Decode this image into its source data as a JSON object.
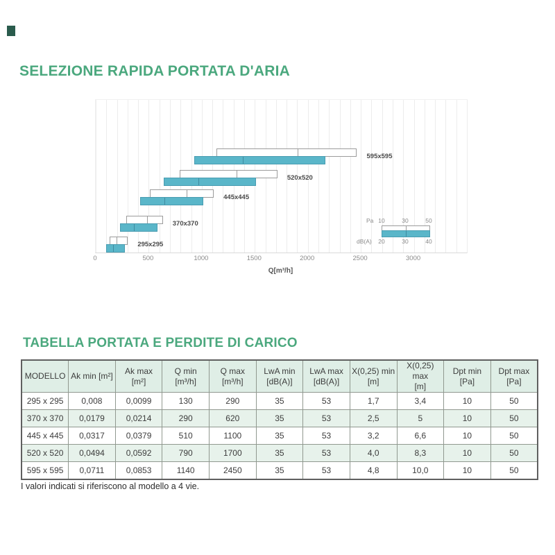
{
  "colors": {
    "accent_green": "#4ba87e",
    "bar_teal": "#5ab6c9",
    "bar_outline": "#9b9b9b",
    "table_header_bg": "#dfeee6",
    "table_stripe": "#e7f2eb",
    "corner_mark": "#2a5b4c"
  },
  "sections": {
    "selezione": {
      "title": "SELEZIONE RAPIDA PORTATA D'ARIA"
    },
    "tabella": {
      "title": "TABELLA PORTATA E PERDITE DI CARICO",
      "footnote": "I valori indicati si riferiscono al modello a 4 vie."
    }
  },
  "chart_data": {
    "type": "bar",
    "orientation": "horizontal-range",
    "title": "",
    "xlabel": "Q[m³/h]",
    "ylabel": "",
    "xlim": [
      0,
      3500
    ],
    "xticks": [
      "0",
      "500",
      "1000",
      "1500",
      "2000",
      "2500",
      "3000"
    ],
    "grid_step": 100,
    "legend": {
      "pa_label": "Pa",
      "pa_ticks": [
        "10",
        "30",
        "50"
      ],
      "dba_label": "dB(A)",
      "dba_ticks": [
        "20",
        "30",
        "40"
      ]
    },
    "models": [
      {
        "label": "295x295",
        "pa_range": [
          130,
          190,
          290
        ],
        "dba_range": [
          100,
          160,
          265
        ]
      },
      {
        "label": "370x370",
        "pa_range": [
          290,
          480,
          620
        ],
        "dba_range": [
          230,
          355,
          570
        ]
      },
      {
        "label": "445x445",
        "pa_range": [
          510,
          850,
          1100
        ],
        "dba_range": [
          420,
          640,
          1000
        ]
      },
      {
        "label": "520x520",
        "pa_range": [
          790,
          1320,
          1700
        ],
        "dba_range": [
          640,
          960,
          1500
        ]
      },
      {
        "label": "595x595",
        "pa_range": [
          1140,
          1900,
          2450
        ],
        "dba_range": [
          930,
          1380,
          2150
        ]
      }
    ]
  },
  "table": {
    "headers": [
      {
        "l1": "MODELLO",
        "l2": ""
      },
      {
        "l1": "Ak min [m²]",
        "l2": ""
      },
      {
        "l1": "Ak max [m²]",
        "l2": ""
      },
      {
        "l1": "Q min",
        "l2": "[m³/h]"
      },
      {
        "l1": "Q max",
        "l2": "[m³/h]"
      },
      {
        "l1": "LwA min",
        "l2": "[dB(A)]"
      },
      {
        "l1": "LwA max",
        "l2": "[dB(A)]"
      },
      {
        "l1": "X(0,25) min",
        "l2": "[m]"
      },
      {
        "l1": "X(0,25) max",
        "l2": "[m]"
      },
      {
        "l1": "Dpt min [Pa]",
        "l2": ""
      },
      {
        "l1": "Dpt max",
        "l2": "[Pa]"
      }
    ],
    "rows": [
      [
        "295 x 295",
        "0,008",
        "0,0099",
        "130",
        "290",
        "35",
        "53",
        "1,7",
        "3,4",
        "10",
        "50"
      ],
      [
        "370 x 370",
        "0,0179",
        "0,0214",
        "290",
        "620",
        "35",
        "53",
        "2,5",
        "5",
        "10",
        "50"
      ],
      [
        "445 x 445",
        "0,0317",
        "0,0379",
        "510",
        "1100",
        "35",
        "53",
        "3,2",
        "6,6",
        "10",
        "50"
      ],
      [
        "520 x 520",
        "0,0494",
        "0,0592",
        "790",
        "1700",
        "35",
        "53",
        "4,0",
        "8,3",
        "10",
        "50"
      ],
      [
        "595 x 595",
        "0,0711",
        "0,0853",
        "1140",
        "2450",
        "35",
        "53",
        "4,8",
        "10,0",
        "10",
        "50"
      ]
    ]
  }
}
